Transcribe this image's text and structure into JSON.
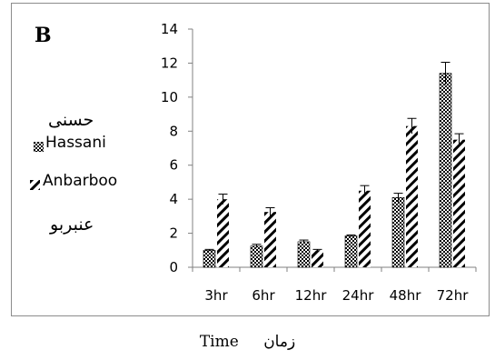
{
  "panel_label": "B",
  "legend": {
    "hassani_ar": "حسنی",
    "hassani_en": "Hassani",
    "anbarboo_en": "Anbarboo",
    "anbarboo_ar": "عنبربو"
  },
  "xlabel_en": "Time",
  "xlabel_ar": "زمان",
  "colors": {
    "bar_fill": "#ffffff",
    "pattern_ink": "#000000",
    "frame": "#8c8c8c",
    "axis": "#808080"
  },
  "chart_data": {
    "type": "bar",
    "categories": [
      "3hr",
      "6hr",
      "12hr",
      "24hr",
      "48hr",
      "72hr"
    ],
    "series": [
      {
        "name": "Hassani",
        "pattern": "crosshatch",
        "values": [
          1.0,
          1.25,
          1.5,
          1.85,
          4.1,
          11.4
        ],
        "errors": [
          0.05,
          0.1,
          0.1,
          0.05,
          0.25,
          0.65
        ]
      },
      {
        "name": "Anbarboo",
        "pattern": "diagonal",
        "values": [
          4.0,
          3.25,
          1.0,
          4.5,
          8.3,
          7.5
        ],
        "errors": [
          0.3,
          0.25,
          0.05,
          0.3,
          0.45,
          0.35
        ]
      }
    ],
    "ylim": [
      0,
      14
    ],
    "yticks": [
      0,
      2,
      4,
      6,
      8,
      10,
      12,
      14
    ],
    "xlabel": "Time",
    "ylabel": "",
    "grid": false,
    "legend_position": "left"
  }
}
